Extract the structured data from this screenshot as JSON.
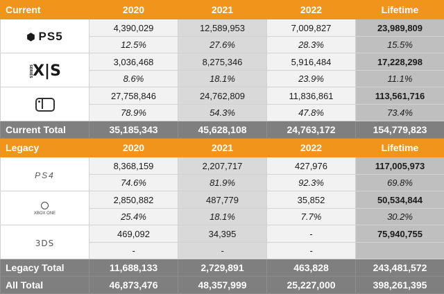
{
  "current": {
    "header": {
      "label": "Current",
      "years": [
        "2020",
        "2021",
        "2022"
      ],
      "lifetime": "Lifetime"
    },
    "rows": [
      {
        "icon": "playstation-5-logo",
        "logo_text": "PS5",
        "values": [
          "4,390,029",
          "12,589,953",
          "7,009,827",
          "23,989,809"
        ],
        "percents": [
          "12.5%",
          "27.6%",
          "28.3%",
          "15.5%"
        ]
      },
      {
        "icon": "xbox-series-xs-logo",
        "logo_text": "X|S",
        "logo_sub": "SERIES",
        "values": [
          "3,036,468",
          "8,275,346",
          "5,916,484",
          "17,228,298"
        ],
        "percents": [
          "8.6%",
          "18.1%",
          "23.9%",
          "11.1%"
        ]
      },
      {
        "icon": "nintendo-switch-logo",
        "values": [
          "27,758,846",
          "24,762,809",
          "11,836,861",
          "113,561,716"
        ],
        "percents": [
          "78.9%",
          "54.3%",
          "47.8%",
          "73.4%"
        ]
      }
    ],
    "total": {
      "label": "Current Total",
      "values": [
        "35,185,343",
        "45,628,108",
        "24,763,172",
        "154,779,823"
      ]
    }
  },
  "legacy": {
    "header": {
      "label": "Legacy",
      "years": [
        "2020",
        "2021",
        "2022"
      ],
      "lifetime": "Lifetime"
    },
    "rows": [
      {
        "icon": "playstation-4-logo",
        "logo_text": "PS4",
        "values": [
          "8,368,159",
          "2,207,717",
          "427,976",
          "117,005,973"
        ],
        "percents": [
          "74.6%",
          "81.9%",
          "92.3%",
          "69.8%"
        ]
      },
      {
        "icon": "xbox-one-logo",
        "logo_text": "XBOX ONE",
        "values": [
          "2,850,882",
          "487,779",
          "35,852",
          "50,534,844"
        ],
        "percents": [
          "25.4%",
          "18.1%",
          "7.7%",
          "30.2%"
        ]
      },
      {
        "icon": "nintendo-3ds-logo",
        "logo_text": "3DS",
        "values": [
          "469,092",
          "34,395",
          "-",
          "75,940,755"
        ],
        "percents": [
          "-",
          "-",
          "-",
          ""
        ]
      }
    ],
    "total": {
      "label": "Legacy Total",
      "values": [
        "11,688,133",
        "2,729,891",
        "463,828",
        "243,481,572"
      ]
    }
  },
  "all_total": {
    "label": "All Total",
    "values": [
      "46,873,476",
      "48,357,999",
      "25,227,000",
      "398,261,395"
    ]
  },
  "colors": {
    "header": "#f0941b",
    "total": "#7f7f7f",
    "col_light": "#f2f2f2",
    "col_mid": "#d9d9d9",
    "col_dark": "#bfbfbf"
  }
}
